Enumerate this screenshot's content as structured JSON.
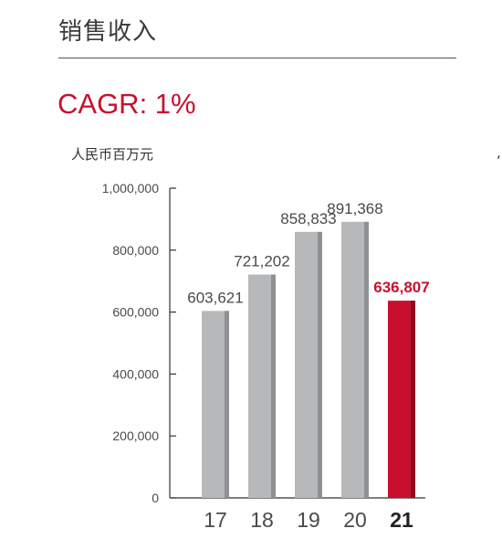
{
  "header": {
    "title": "销售收入",
    "cagr": "CAGR: 1%",
    "unit": "人民币百万元",
    "edge_mark": ","
  },
  "colors": {
    "bar": "#b7b8ba",
    "bar_side": "#8f9093",
    "highlight": "#c8102e",
    "highlight_side": "#8e0a1e",
    "axis": "#333333",
    "text": "#4a4a4a"
  },
  "chart_data": {
    "type": "bar",
    "categories": [
      "17",
      "18",
      "19",
      "20",
      "21"
    ],
    "values": [
      603621,
      721202,
      858833,
      891368,
      636807
    ],
    "value_labels": [
      "603,621",
      "721,202",
      "858,833",
      "891,368",
      "636,807"
    ],
    "highlight_index": 4,
    "ylim": [
      0,
      1000000
    ],
    "yticks": [
      0,
      200000,
      400000,
      600000,
      800000,
      1000000
    ],
    "ytick_labels": [
      "0",
      "200,000",
      "400,000",
      "600,000",
      "800,000",
      "1,000,000"
    ],
    "ylabel": "人民币百万元",
    "grid": false,
    "legend": "none"
  }
}
